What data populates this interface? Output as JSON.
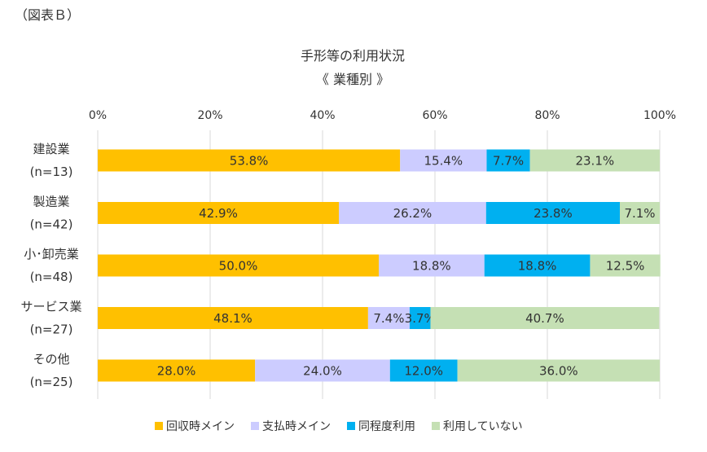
{
  "figure_label": "（図表Ｂ）",
  "chart_data": {
    "type": "bar",
    "orientation": "horizontal",
    "stacked": "percent",
    "title": "手形等の利用状況",
    "subtitle": "《 業種別 》",
    "xlim": [
      0,
      100
    ],
    "grid": true,
    "legend_position": "bottom",
    "x_ticks": [
      "0%",
      "20%",
      "40%",
      "60%",
      "80%",
      "100%"
    ],
    "categories": [
      {
        "name": "建設業",
        "n": "(n=13)"
      },
      {
        "name": "製造業",
        "n": "(n=42)"
      },
      {
        "name": "小･卸売業",
        "n": "(n=48)"
      },
      {
        "name": "サービス業",
        "n": "(n=27)"
      },
      {
        "name": "その他",
        "n": "(n=25)"
      }
    ],
    "series": [
      {
        "name": "回収時メイン",
        "color": "#FFC000",
        "values": [
          53.8,
          42.9,
          50.0,
          48.1,
          28.0
        ],
        "labels": [
          "53.8%",
          "42.9%",
          "50.0%",
          "48.1%",
          "28.0%"
        ]
      },
      {
        "name": "支払時メイン",
        "color": "#CCCCFF",
        "values": [
          15.4,
          26.2,
          18.8,
          7.4,
          24.0
        ],
        "labels": [
          "15.4%",
          "26.2%",
          "18.8%",
          "7.4%",
          "24.0%"
        ]
      },
      {
        "name": "同程度利用",
        "color": "#00B0F0",
        "values": [
          7.7,
          23.8,
          18.8,
          3.7,
          12.0
        ],
        "labels": [
          "7.7%",
          "23.8%",
          "18.8%",
          "3.7%",
          "12.0%"
        ]
      },
      {
        "name": "利用していない",
        "color": "#C5E0B4",
        "values": [
          23.1,
          7.1,
          12.5,
          40.7,
          36.0
        ],
        "labels": [
          "23.1%",
          "7.1%",
          "12.5%",
          "40.7%",
          "36.0%"
        ]
      }
    ]
  }
}
